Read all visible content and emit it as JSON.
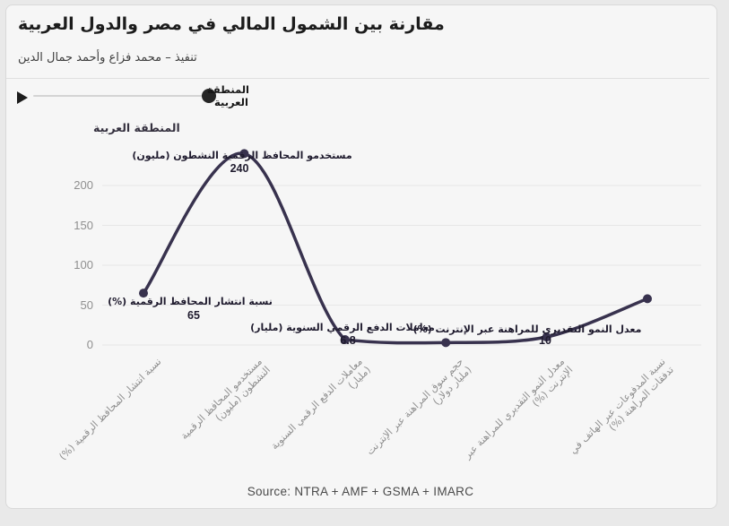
{
  "header": {
    "title": "مقارنة بين الشمول المالي في مصر والدول العربية",
    "subtitle": "تنفيذ – محمد فزاع وأحمد جمال الدين"
  },
  "timeline": {
    "current_label_line1": "المنطقة",
    "current_label_line2": "العربية"
  },
  "legend": {
    "label": "المنطقة العربية"
  },
  "chart_data": {
    "type": "line",
    "title": "مقارنة بين الشمول المالي في مصر والدول العربية",
    "legend_position": "top-left",
    "grid": true,
    "line_color": "#38324e",
    "yticks": [
      0,
      50,
      100,
      150,
      200
    ],
    "ylim": [
      0,
      260
    ],
    "categories": [
      "نسبة انتشار المحافظ الرقمية (%)",
      "مستخدمو المحافظ الرقمية النشطون (مليون)",
      "معاملات الدفع الرقمي السنوية (مليار)",
      "حجم سوق المراهنة عبر الإنترنت (مليار دولار)",
      "معدل النمو التقديري للمراهنة عبر الإنترنت (%)",
      "نسبة المدفوعات عبر الهاتف في تدفقات المراهنة (%)"
    ],
    "tick_lines": [
      [
        "نسبة انتشار المحافظ الرقمية (%)"
      ],
      [
        "مستخدمو المحافظ الرقمية",
        "النشطون (مليون)"
      ],
      [
        "معاملات الدفع الرقمي السنوية",
        "(مليار)"
      ],
      [
        "حجم سوق المراهنة عبر الإنترنت",
        "(مليار دولار)"
      ],
      [
        "معدل النمو التقديري للمراهنة عبر",
        "الإنترنت (%)"
      ],
      [
        "نسبة المدفوعات عبر الهاتف في",
        "تدفقات المراهنة (%)"
      ]
    ],
    "series": [
      {
        "name": "المنطقة العربية",
        "values": [
          65,
          240,
          6.8,
          3,
          10,
          58
        ]
      }
    ],
    "point_labels": [
      {
        "text": "نسبة انتشار المحافظ الرقمية (%)",
        "value": "65"
      },
      {
        "text": "مستخدمو المحافظ الرقمية النشطون (مليون)",
        "value": "240"
      },
      {
        "text": "معاملات الدفع الرقمي السنوية (مليار)",
        "value": "6.8"
      },
      null,
      {
        "text": "معدل النمو التقديري للمراهنة عبر الإنترنت (%)",
        "value": "10"
      },
      null
    ]
  },
  "footer": {
    "source": "Source: NTRA + AMF + GSMA + IMARC"
  }
}
